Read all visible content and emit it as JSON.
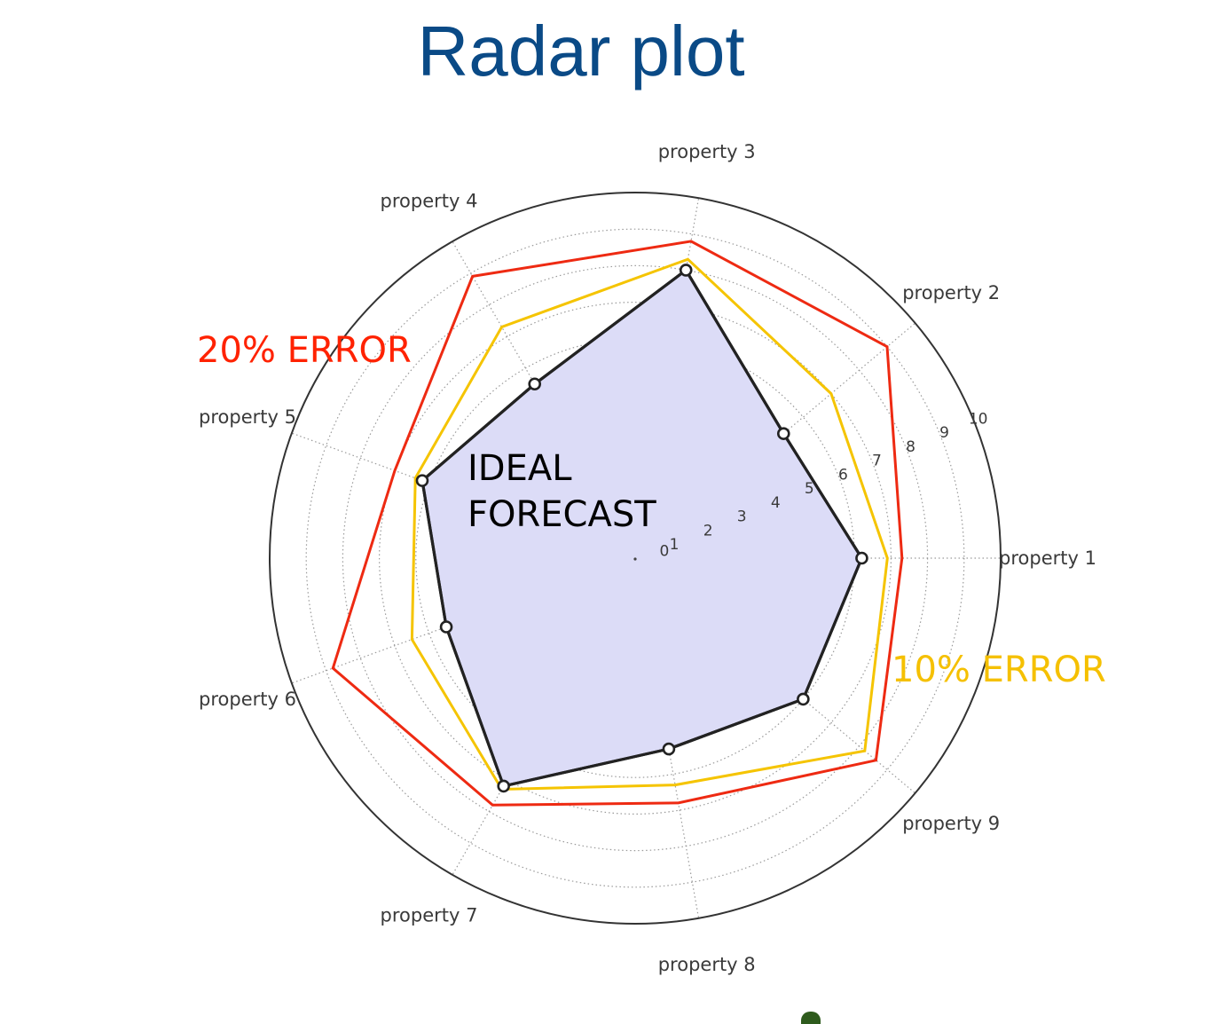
{
  "title": "Radar plot",
  "chart_data": {
    "type": "radar",
    "axes": [
      "property 1",
      "property 2",
      "property 3",
      "property 4",
      "property 5",
      "property 6",
      "property 7",
      "property 8",
      "property 9"
    ],
    "ticks": [
      "0",
      "1",
      "2",
      "3",
      "4",
      "5",
      "6",
      "7",
      "8",
      "9",
      "10"
    ],
    "rlim": [
      0,
      10
    ],
    "grid": true,
    "series": [
      {
        "name": "IDEAL FORECAST",
        "values": [
          6.2,
          5.3,
          8.0,
          5.5,
          6.2,
          5.5,
          7.2,
          5.3,
          6.0
        ]
      },
      {
        "name": "10% ERROR",
        "values": [
          6.9,
          7.0,
          8.3,
          7.3,
          6.4,
          6.5,
          7.3,
          6.3,
          8.2
        ]
      },
      {
        "name": "20% ERROR",
        "values": [
          7.3,
          9.0,
          8.8,
          8.9,
          7.0,
          8.8,
          7.8,
          6.8,
          8.6
        ]
      }
    ],
    "annotations": [
      {
        "text": "20% ERROR",
        "color": "#ff2200"
      },
      {
        "text": "10% ERROR",
        "color": "#f5c000"
      },
      {
        "text": "IDEAL",
        "color": "#000000"
      },
      {
        "text": "FORECAST",
        "color": "#000000"
      }
    ],
    "colors": {
      "ideal_fill": "#dcdcf7",
      "ideal_line": "#222222",
      "ten_pct": "#f5c400",
      "twenty_pct": "#ee2a12",
      "frame": "#333333",
      "grid": "#9a9a9a"
    }
  }
}
